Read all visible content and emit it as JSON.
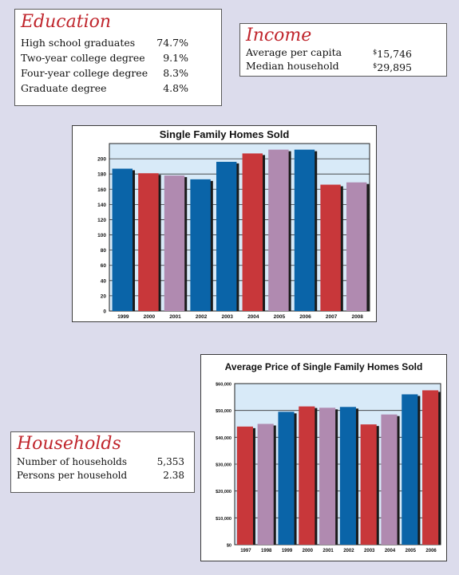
{
  "education": {
    "title": "Education",
    "rows": [
      {
        "label": "High school graduates",
        "value": "74.7%"
      },
      {
        "label": "Two-year college degree",
        "value": "9.1%"
      },
      {
        "label": "Four-year college degree",
        "value": "8.3%"
      },
      {
        "label": "Graduate degree",
        "value": "4.8%"
      }
    ]
  },
  "income": {
    "title": "Income",
    "rows": [
      {
        "label": "Average per capita",
        "currency": "$",
        "value": "15,746"
      },
      {
        "label": "Median household",
        "currency": "$",
        "value": "29,895"
      }
    ]
  },
  "households": {
    "title": "Households",
    "rows": [
      {
        "label": "Number of households",
        "value": "5,353"
      },
      {
        "label": "Persons per household",
        "value": "2.38"
      }
    ]
  },
  "colors": {
    "blue": "#0a64a8",
    "red": "#c8373a",
    "mauve": "#b08ab0",
    "plot_bg": "#d8eaf8",
    "title_red": "#c0262d"
  },
  "chart_data": [
    {
      "type": "bar",
      "title": "Single Family Homes Sold",
      "xlabel": "",
      "ylabel": "",
      "categories": [
        "1999",
        "2000",
        "2001",
        "2002",
        "2003",
        "2004",
        "2005",
        "2006",
        "2007",
        "2008"
      ],
      "values": [
        187,
        181,
        178,
        173,
        196,
        207,
        212,
        212,
        166,
        169
      ],
      "bar_colors": [
        "blue",
        "red",
        "mauve",
        "blue",
        "blue",
        "red",
        "mauve",
        "blue",
        "red",
        "mauve"
      ],
      "ylim": [
        0,
        220
      ],
      "yticks": [
        0,
        20,
        40,
        60,
        80,
        100,
        120,
        140,
        160,
        180,
        200
      ],
      "ytick_labels": [
        "0",
        "20",
        "40",
        "60",
        "80",
        "100",
        "120",
        "140",
        "160",
        "180",
        "200"
      ],
      "grid": true
    },
    {
      "type": "bar",
      "title": "Average Price of Single Family Homes Sold",
      "xlabel": "",
      "ylabel": "",
      "categories": [
        "1997",
        "1998",
        "1999",
        "2000",
        "2001",
        "2002",
        "2003",
        "2004",
        "2005",
        "2006"
      ],
      "values": [
        44000,
        45000,
        49500,
        51500,
        51000,
        51300,
        44800,
        48500,
        56000,
        57500
      ],
      "bar_colors": [
        "red",
        "mauve",
        "blue",
        "red",
        "mauve",
        "blue",
        "red",
        "mauve",
        "blue",
        "red"
      ],
      "ylim": [
        0,
        60000
      ],
      "yticks": [
        0,
        10000,
        20000,
        30000,
        40000,
        50000,
        60000
      ],
      "ytick_labels": [
        "$0",
        "$10,000",
        "$20,000",
        "$30,000",
        "$40,000",
        "$50,000",
        "$60,000"
      ],
      "grid": true
    }
  ]
}
